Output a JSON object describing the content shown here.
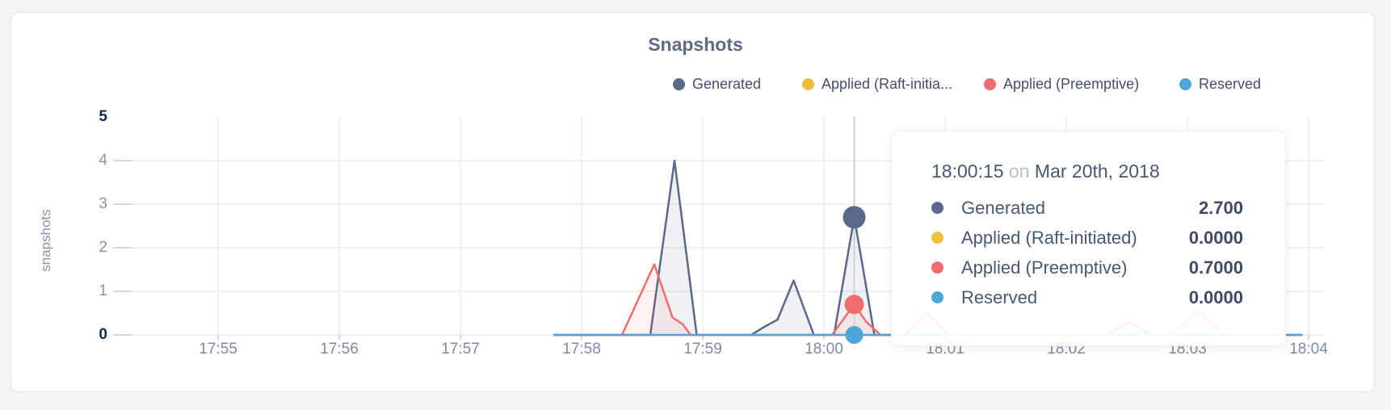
{
  "accent_colors": {
    "generated": "#5a6987",
    "raft": "#f0be3a",
    "preemptive": "#f16d6d",
    "reserved": "#4fa5d9",
    "title": "#5f6c87",
    "gridline": "#ececec",
    "crosshair": "#d2d2d2"
  },
  "chart_data": {
    "type": "area",
    "title": "Snapshots",
    "ylabel": "snapshots",
    "xlabel": "",
    "ylim": [
      0,
      5
    ],
    "y_ticks": [
      0,
      1,
      2,
      3,
      4,
      5
    ],
    "x_ticks": [
      "17:55",
      "17:56",
      "17:57",
      "17:58",
      "17:59",
      "18:00",
      "18:01",
      "18:02",
      "18:03",
      "18:04"
    ],
    "grid": "on",
    "legend_position": "top-right",
    "legend": [
      {
        "label": "Generated",
        "color": "#5a6987"
      },
      {
        "label": "Applied (Raft-initia...",
        "color": "#f0be3a"
      },
      {
        "label": "Applied (Preemptive)",
        "color": "#f16d6d"
      },
      {
        "label": "Reserved",
        "color": "#4fa5d9"
      }
    ],
    "series": [
      {
        "name": "Generated",
        "color": "#5a6987",
        "fill": "rgba(90,105,135,0.09)",
        "points": [
          [
            "17:57:46",
            0
          ],
          [
            "17:58:34",
            0
          ],
          [
            "17:58:46",
            4
          ],
          [
            "17:58:57",
            0
          ],
          [
            "17:59:24",
            0
          ],
          [
            "17:59:31",
            0.2
          ],
          [
            "17:59:37",
            0.35
          ],
          [
            "17:59:45",
            1.25
          ],
          [
            "17:59:55",
            0
          ],
          [
            "18:00:05",
            0
          ],
          [
            "18:00:15",
            2.7
          ],
          [
            "18:00:25",
            0
          ],
          [
            "18:00:40",
            0
          ],
          [
            "18:00:51",
            0.5
          ],
          [
            "18:01:02",
            0
          ],
          [
            "18:02:20",
            0
          ],
          [
            "18:02:31",
            0.3
          ],
          [
            "18:02:42",
            0
          ],
          [
            "18:03:57",
            0
          ]
        ]
      },
      {
        "name": "Applied (Raft-initiated)",
        "color": "#f0be3a",
        "fill": null,
        "points": [
          [
            "17:57:46",
            0
          ],
          [
            "18:03:57",
            0
          ]
        ]
      },
      {
        "name": "Applied (Preemptive)",
        "color": "#f16d6d",
        "fill": "rgba(241,109,109,0.09)",
        "points": [
          [
            "17:57:46",
            0
          ],
          [
            "17:58:20",
            0
          ],
          [
            "17:58:36",
            1.62
          ],
          [
            "17:58:45",
            0.4
          ],
          [
            "17:58:50",
            0.25
          ],
          [
            "17:58:54",
            0
          ],
          [
            "18:00:04",
            0
          ],
          [
            "18:00:15",
            0.7
          ],
          [
            "18:00:21",
            0.3
          ],
          [
            "18:00:28",
            0
          ],
          [
            "18:02:52",
            0
          ],
          [
            "18:03:05",
            0.55
          ],
          [
            "18:03:18",
            0
          ],
          [
            "18:03:57",
            0
          ]
        ]
      },
      {
        "name": "Reserved",
        "color": "#4fa5d9",
        "fill": null,
        "points": [
          [
            "17:57:46",
            0
          ],
          [
            "18:03:57",
            0
          ]
        ]
      }
    ],
    "highlight": {
      "time": "18:00:15",
      "dots": [
        {
          "series": "Generated",
          "value": 2.7,
          "color": "#5a6987",
          "radius": 14
        },
        {
          "series": "Applied (Raft-initiated)",
          "value": 0,
          "color": "#f0be3a",
          "radius": 11
        },
        {
          "series": "Applied (Preemptive)",
          "value": 0.7,
          "color": "#f16d6d",
          "radius": 12
        },
        {
          "series": "Reserved",
          "value": 0,
          "color": "#4fa5d9",
          "radius": 11
        }
      ]
    }
  },
  "tooltip": {
    "time": "18:00:15",
    "conj": "on",
    "date": "Mar 20th, 2018",
    "rows": [
      {
        "label": "Generated",
        "value": "2.700",
        "color": "#5a6987"
      },
      {
        "label": "Applied (Raft-initiated)",
        "value": "0.0000",
        "color": "#f0be3a"
      },
      {
        "label": "Applied (Preemptive)",
        "value": "0.7000",
        "color": "#f16d6d"
      },
      {
        "label": "Reserved",
        "value": "0.0000",
        "color": "#4fa5d9"
      }
    ]
  }
}
